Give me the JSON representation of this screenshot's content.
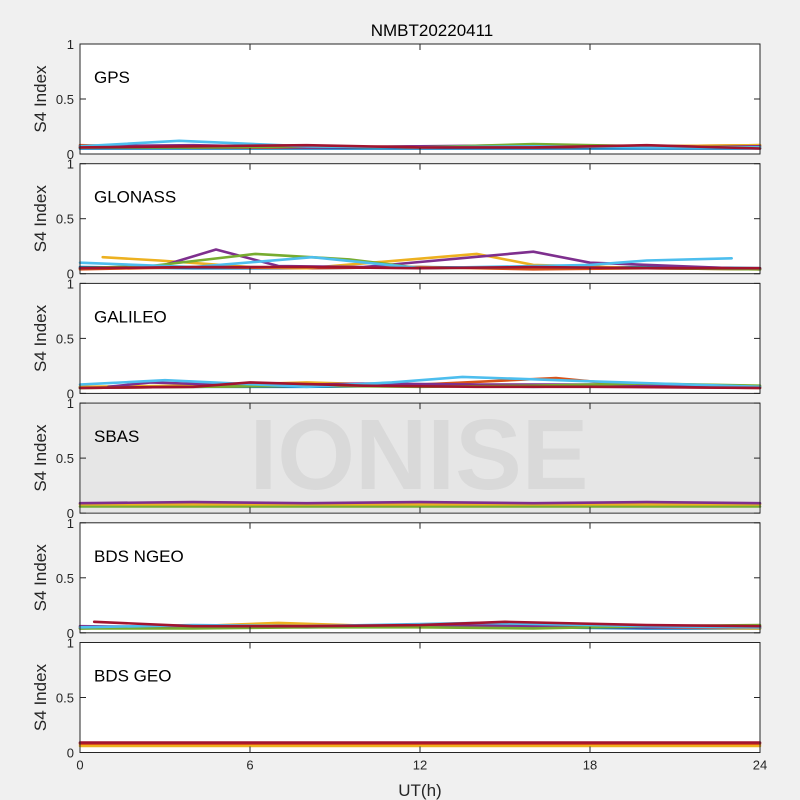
{
  "figure": {
    "title": "NMBT20220411",
    "watermark": "IONISE",
    "xlabel": "UT(h)",
    "background": "#f0f0f0",
    "axes_color": "#262626",
    "watermark_color": "#e6e6e6"
  },
  "colors": [
    "#0072bd",
    "#d95319",
    "#edb120",
    "#7e2f8e",
    "#77ac30",
    "#4dbeee",
    "#a2142f"
  ],
  "chart_data": [
    {
      "type": "line",
      "panel": "GPS",
      "ylabel": "S4 Index",
      "xlim": [
        0,
        24
      ],
      "ylim": [
        0,
        1
      ],
      "xticks": [
        0,
        6,
        12,
        18,
        24
      ],
      "yticks": [
        0,
        0.5,
        1
      ],
      "ytick_labels": [
        "0",
        "0.5",
        "1"
      ],
      "show_xticklabels": false,
      "series": [
        {
          "color_index": 0,
          "x": [
            0,
            4,
            8,
            12,
            16,
            20,
            24
          ],
          "y": [
            0.05,
            0.05,
            0.05,
            0.05,
            0.05,
            0.05,
            0.05
          ]
        },
        {
          "color_index": 1,
          "x": [
            0,
            4,
            8,
            12,
            16,
            20,
            24
          ],
          "y": [
            0.08,
            0.06,
            0.06,
            0.07,
            0.06,
            0.07,
            0.08
          ]
        },
        {
          "color_index": 2,
          "x": [
            0,
            4,
            8,
            12,
            16,
            20,
            24
          ],
          "y": [
            0.06,
            0.07,
            0.07,
            0.06,
            0.07,
            0.07,
            0.08
          ]
        },
        {
          "color_index": 3,
          "x": [
            0,
            4,
            8,
            12,
            16,
            20,
            24
          ],
          "y": [
            0.07,
            0.08,
            0.06,
            0.07,
            0.08,
            0.06,
            0.07
          ]
        },
        {
          "color_index": 4,
          "x": [
            0,
            4,
            8,
            12,
            16,
            20,
            24
          ],
          "y": [
            0.06,
            0.06,
            0.07,
            0.06,
            0.09,
            0.07,
            0.06
          ]
        },
        {
          "color_index": 5,
          "x": [
            0,
            3.5,
            8,
            12,
            16,
            20,
            24
          ],
          "y": [
            0.07,
            0.12,
            0.07,
            0.06,
            0.07,
            0.06,
            0.06
          ]
        },
        {
          "color_index": 6,
          "x": [
            0,
            4,
            8,
            12,
            16,
            20,
            24
          ],
          "y": [
            0.06,
            0.07,
            0.08,
            0.06,
            0.06,
            0.08,
            0.05
          ]
        }
      ]
    },
    {
      "type": "line",
      "panel": "GLONASS",
      "ylabel": "S4 Index",
      "xlim": [
        0,
        24
      ],
      "ylim": [
        0,
        1
      ],
      "xticks": [
        0,
        6,
        12,
        18,
        24
      ],
      "yticks": [
        0,
        0.5,
        1
      ],
      "ytick_labels": [
        "0",
        "0.5",
        "1"
      ],
      "show_xticklabels": false,
      "series": [
        {
          "color_index": 0,
          "x": [
            0,
            4,
            8,
            12,
            16,
            20,
            24
          ],
          "y": [
            0.06,
            0.05,
            0.05,
            0.06,
            0.05,
            0.06,
            0.05
          ]
        },
        {
          "color_index": 1,
          "x": [
            0,
            4,
            8,
            12,
            16,
            20,
            24
          ],
          "y": [
            0.04,
            0.06,
            0.05,
            0.06,
            0.04,
            0.05,
            0.04
          ]
        },
        {
          "color_index": 2,
          "x": [
            0.8,
            2.8,
            6,
            8,
            14,
            16,
            20
          ],
          "y": [
            0.15,
            0.12,
            0.06,
            0.05,
            0.18,
            0.08,
            0.05
          ]
        },
        {
          "color_index": 3,
          "x": [
            3,
            4.8,
            7,
            10,
            16,
            18,
            24
          ],
          "y": [
            0.08,
            0.22,
            0.07,
            0.06,
            0.2,
            0.1,
            0.04
          ]
        },
        {
          "color_index": 4,
          "x": [
            0,
            2.5,
            6.2,
            9.5,
            12,
            16,
            24
          ],
          "y": [
            0.05,
            0.07,
            0.18,
            0.13,
            0.05,
            0.06,
            0.04
          ]
        },
        {
          "color_index": 5,
          "x": [
            0,
            4,
            8.2,
            12,
            18,
            20,
            23
          ],
          "y": [
            0.1,
            0.06,
            0.15,
            0.05,
            0.08,
            0.12,
            0.14
          ]
        },
        {
          "color_index": 6,
          "x": [
            0,
            4,
            8,
            12,
            16,
            20,
            24
          ],
          "y": [
            0.05,
            0.06,
            0.06,
            0.05,
            0.06,
            0.05,
            0.05
          ]
        }
      ]
    },
    {
      "type": "line",
      "panel": "GALILEO",
      "ylabel": "S4 Index",
      "xlim": [
        0,
        24
      ],
      "ylim": [
        0,
        1
      ],
      "xticks": [
        0,
        6,
        12,
        18,
        24
      ],
      "yticks": [
        0,
        0.5,
        1
      ],
      "ytick_labels": [
        "0",
        "0.5",
        "1"
      ],
      "show_xticklabels": false,
      "series": [
        {
          "color_index": 0,
          "x": [
            0,
            4,
            8,
            12,
            16,
            20,
            24
          ],
          "y": [
            0.06,
            0.06,
            0.06,
            0.07,
            0.06,
            0.07,
            0.06
          ]
        },
        {
          "color_index": 1,
          "x": [
            0,
            4,
            8,
            12,
            16.8,
            20,
            24
          ],
          "y": [
            0.05,
            0.06,
            0.07,
            0.08,
            0.14,
            0.06,
            0.05
          ]
        },
        {
          "color_index": 2,
          "x": [
            0,
            4,
            8,
            12,
            16,
            20,
            24
          ],
          "y": [
            0.06,
            0.07,
            0.1,
            0.07,
            0.07,
            0.07,
            0.06
          ]
        },
        {
          "color_index": 3,
          "x": [
            1,
            2.5,
            6,
            10,
            14,
            18,
            23
          ],
          "y": [
            0.06,
            0.1,
            0.07,
            0.09,
            0.08,
            0.08,
            0.07
          ]
        },
        {
          "color_index": 4,
          "x": [
            0,
            4,
            8,
            12,
            16,
            20,
            24
          ],
          "y": [
            0.05,
            0.06,
            0.07,
            0.06,
            0.07,
            0.09,
            0.07
          ]
        },
        {
          "color_index": 5,
          "x": [
            0,
            3,
            8,
            11,
            13.5,
            18,
            24
          ],
          "y": [
            0.08,
            0.12,
            0.06,
            0.1,
            0.15,
            0.11,
            0.06
          ]
        },
        {
          "color_index": 6,
          "x": [
            0,
            4,
            6,
            10,
            14,
            18,
            24
          ],
          "y": [
            0.05,
            0.06,
            0.1,
            0.07,
            0.06,
            0.06,
            0.05
          ]
        }
      ]
    },
    {
      "type": "line",
      "panel": "SBAS",
      "ylabel": "S4 Index",
      "xlim": [
        0,
        24
      ],
      "ylim": [
        0,
        1
      ],
      "xticks": [
        0,
        6,
        12,
        18,
        24
      ],
      "yticks": [
        0,
        0.5,
        1
      ],
      "ytick_labels": [
        "0",
        "0.5",
        "1"
      ],
      "show_xticklabels": false,
      "has_watermark": true,
      "series": [
        {
          "color_index": 4,
          "x": [
            0,
            4,
            8,
            12,
            16,
            20,
            24
          ],
          "y": [
            0.06,
            0.06,
            0.06,
            0.06,
            0.06,
            0.06,
            0.06
          ]
        },
        {
          "color_index": 2,
          "x": [
            0,
            4,
            8,
            12,
            16,
            20,
            24
          ],
          "y": [
            0.08,
            0.08,
            0.08,
            0.08,
            0.08,
            0.08,
            0.08
          ]
        },
        {
          "color_index": 3,
          "x": [
            0,
            4,
            8,
            12,
            16,
            20,
            24
          ],
          "y": [
            0.09,
            0.1,
            0.09,
            0.1,
            0.09,
            0.1,
            0.09
          ]
        }
      ]
    },
    {
      "type": "line",
      "panel": "BDS NGEO",
      "ylabel": "S4 Index",
      "xlim": [
        0,
        24
      ],
      "ylim": [
        0,
        1
      ],
      "xticks": [
        0,
        6,
        12,
        18,
        24
      ],
      "yticks": [
        0,
        0.5,
        1
      ],
      "ytick_labels": [
        "0",
        "0.5",
        "1"
      ],
      "show_xticklabels": false,
      "series": [
        {
          "color_index": 0,
          "x": [
            0,
            4,
            8,
            12,
            16,
            20,
            24
          ],
          "y": [
            0.04,
            0.06,
            0.05,
            0.06,
            0.05,
            0.04,
            0.04
          ]
        },
        {
          "color_index": 1,
          "x": [
            0,
            4,
            8,
            12,
            16,
            20,
            24
          ],
          "y": [
            0.05,
            0.06,
            0.07,
            0.06,
            0.08,
            0.06,
            0.05
          ]
        },
        {
          "color_index": 2,
          "x": [
            0,
            4,
            7,
            12,
            16,
            20,
            24
          ],
          "y": [
            0.04,
            0.06,
            0.09,
            0.05,
            0.06,
            0.05,
            0.04
          ]
        },
        {
          "color_index": 3,
          "x": [
            0,
            4,
            8,
            12,
            16,
            20,
            24
          ],
          "y": [
            0.06,
            0.05,
            0.06,
            0.07,
            0.06,
            0.05,
            0.05
          ]
        },
        {
          "color_index": 4,
          "x": [
            0,
            4,
            8,
            12,
            16,
            20,
            24
          ],
          "y": [
            0.04,
            0.04,
            0.05,
            0.05,
            0.04,
            0.06,
            0.07
          ]
        },
        {
          "color_index": 5,
          "x": [
            0,
            4,
            8,
            12,
            14,
            20,
            24
          ],
          "y": [
            0.05,
            0.07,
            0.06,
            0.08,
            0.09,
            0.06,
            0.05
          ]
        },
        {
          "color_index": 6,
          "x": [
            0.5,
            4,
            8,
            12,
            15,
            20,
            24
          ],
          "y": [
            0.1,
            0.06,
            0.06,
            0.07,
            0.1,
            0.07,
            0.06
          ]
        }
      ]
    },
    {
      "type": "line",
      "panel": "BDS GEO",
      "ylabel": "S4 Index",
      "xlim": [
        0,
        24
      ],
      "ylim": [
        0,
        1
      ],
      "xticks": [
        0,
        6,
        12,
        18,
        24
      ],
      "yticks": [
        0,
        0.5,
        1
      ],
      "ytick_labels": [
        "0",
        "0.5",
        "1"
      ],
      "show_xticklabels": true,
      "xtick_labels": [
        "0",
        "6",
        "12",
        "18",
        "24"
      ],
      "series": [
        {
          "color_index": 2,
          "x": [
            0,
            4,
            9.8,
            13.5,
            18,
            24
          ],
          "y": [
            0.06,
            0.06,
            0.06,
            0.06,
            0.06,
            0.06
          ]
        },
        {
          "color_index": 1,
          "x": [
            0,
            4,
            8,
            12,
            16,
            20,
            24
          ],
          "y": [
            0.08,
            0.08,
            0.08,
            0.08,
            0.08,
            0.08,
            0.08
          ]
        },
        {
          "color_index": 6,
          "x": [
            0,
            4,
            8,
            12,
            16,
            20,
            24
          ],
          "y": [
            0.09,
            0.09,
            0.09,
            0.09,
            0.09,
            0.09,
            0.09
          ]
        }
      ]
    }
  ]
}
